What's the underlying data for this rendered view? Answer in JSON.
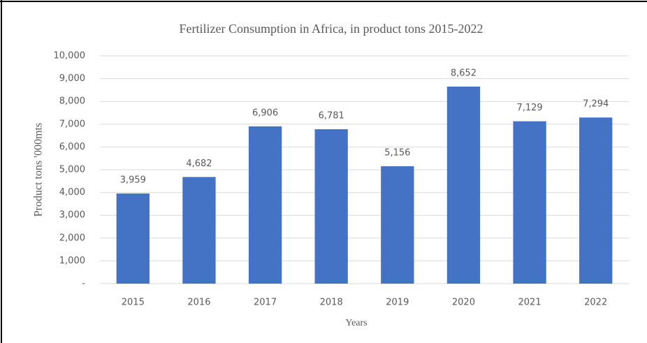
{
  "chart_data": {
    "type": "bar",
    "title": "Fertilizer  Consumption in Africa, in product tons 2015-2022",
    "x_label": "Years",
    "y_label": "Product tons '000mts",
    "categories": [
      "2015",
      "2016",
      "2017",
      "2018",
      "2019",
      "2020",
      "2021",
      "2022"
    ],
    "values": [
      3959,
      4682,
      6906,
      6781,
      5156,
      8652,
      7129,
      7294
    ],
    "value_labels": [
      "3,959",
      "4,682",
      "6,906",
      "6,781",
      "5,156",
      "8,652",
      "7,129",
      "7,294"
    ],
    "color": "#4472c4",
    "ylim": [
      0,
      10000
    ],
    "yticks": [
      {
        "value": 0,
        "label": "-"
      },
      {
        "value": 1000,
        "label": "1,000"
      },
      {
        "value": 2000,
        "label": "2,000"
      },
      {
        "value": 3000,
        "label": "3,000"
      },
      {
        "value": 4000,
        "label": "4,000"
      },
      {
        "value": 5000,
        "label": "5,000"
      },
      {
        "value": 6000,
        "label": "6,000"
      },
      {
        "value": 7000,
        "label": "7,000"
      },
      {
        "value": 8000,
        "label": "8,000"
      },
      {
        "value": 9000,
        "label": "9,000"
      },
      {
        "value": 10000,
        "label": "10,000"
      }
    ],
    "grid": true
  }
}
